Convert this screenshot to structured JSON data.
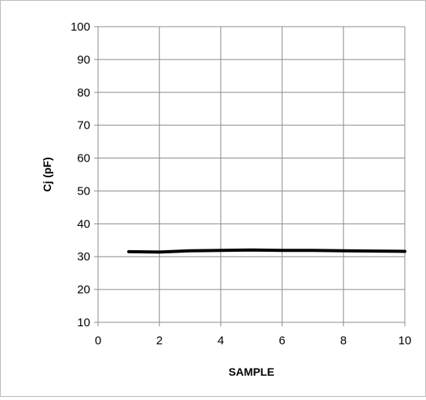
{
  "chart_data": {
    "type": "line",
    "title": "",
    "xlabel": "SAMPLE",
    "ylabel": "Cj (pF)",
    "xlim": [
      0,
      10
    ],
    "ylim": [
      10,
      100
    ],
    "x_ticks": [
      "0",
      "2",
      "4",
      "6",
      "8",
      "10"
    ],
    "y_ticks": [
      "10",
      "20",
      "30",
      "40",
      "50",
      "60",
      "70",
      "80",
      "90",
      "100"
    ],
    "grid": true,
    "legend": "none",
    "series": [
      {
        "color": "#000000",
        "x": [
          1,
          2,
          3,
          4,
          5,
          6,
          7,
          8,
          9,
          10
        ],
        "y": [
          31.5,
          31.4,
          31.8,
          31.9,
          32.0,
          31.9,
          31.9,
          31.8,
          31.7,
          31.6
        ]
      }
    ]
  }
}
